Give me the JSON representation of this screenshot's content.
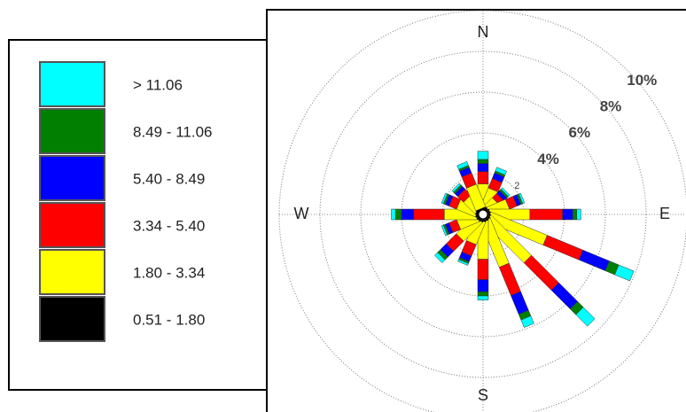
{
  "chart_data": {
    "type": "windrose",
    "categories": [
      "N",
      null,
      null,
      null,
      "E",
      null,
      null,
      null,
      "S",
      null,
      null,
      null,
      "W",
      null,
      null,
      null
    ],
    "rlim": [
      0,
      10
    ],
    "rticks": [
      2,
      {
        "value": 4,
        "label": "4%"
      },
      {
        "value": 6,
        "label": "6%"
      },
      {
        "value": 8,
        "label": "8%"
      },
      {
        "value": 10,
        "label": "10%"
      }
    ],
    "grid": true,
    "legend": "left",
    "series": [
      {
        "name": "0.51 - 1.80",
        "color": "#000000",
        "values": [
          0.3,
          0.3,
          0.3,
          0.3,
          0.3,
          0.3,
          0.3,
          0.3,
          0.3,
          0.3,
          0.3,
          0.3,
          0.3,
          0.3,
          0.3,
          0.3
        ]
      },
      {
        "name": "1.80 - 3.34",
        "color": "#ffff00",
        "values": [
          1.2,
          1.0,
          0.6,
          1.0,
          2.0,
          3.0,
          2.8,
          2.4,
          1.9,
          1.2,
          1.3,
          1.0,
          1.6,
          1.0,
          0.8,
          1.2
        ]
      },
      {
        "name": "3.34 - 5.40",
        "color": "#ff0000",
        "values": [
          0.6,
          0.5,
          0.3,
          0.4,
          1.6,
          1.9,
          1.9,
          1.5,
          1.0,
          0.6,
          0.7,
          0.4,
          1.5,
          0.4,
          0.4,
          0.6
        ]
      },
      {
        "name": "5.40 - 8.49",
        "color": "#0000ff",
        "values": [
          0.4,
          0.3,
          0.2,
          0.2,
          0.5,
          1.4,
          1.3,
          1.0,
          0.6,
          0.3,
          0.4,
          0.2,
          0.6,
          0.2,
          0.2,
          0.3
        ]
      },
      {
        "name": "8.49 - 11.06",
        "color": "#007f00",
        "values": [
          0.2,
          0.1,
          0.1,
          0.1,
          0.2,
          0.5,
          0.4,
          0.3,
          0.2,
          0.1,
          0.2,
          0.1,
          0.3,
          0.1,
          0.1,
          0.1
        ]
      },
      {
        "name": "> 11.06",
        "color": "#00ffff",
        "values": [
          0.4,
          0.2,
          0.1,
          0.1,
          0.2,
          0.8,
          0.8,
          0.4,
          0.2,
          0.1,
          0.2,
          0.1,
          0.2,
          0.1,
          0.1,
          0.2
        ]
      }
    ]
  }
}
